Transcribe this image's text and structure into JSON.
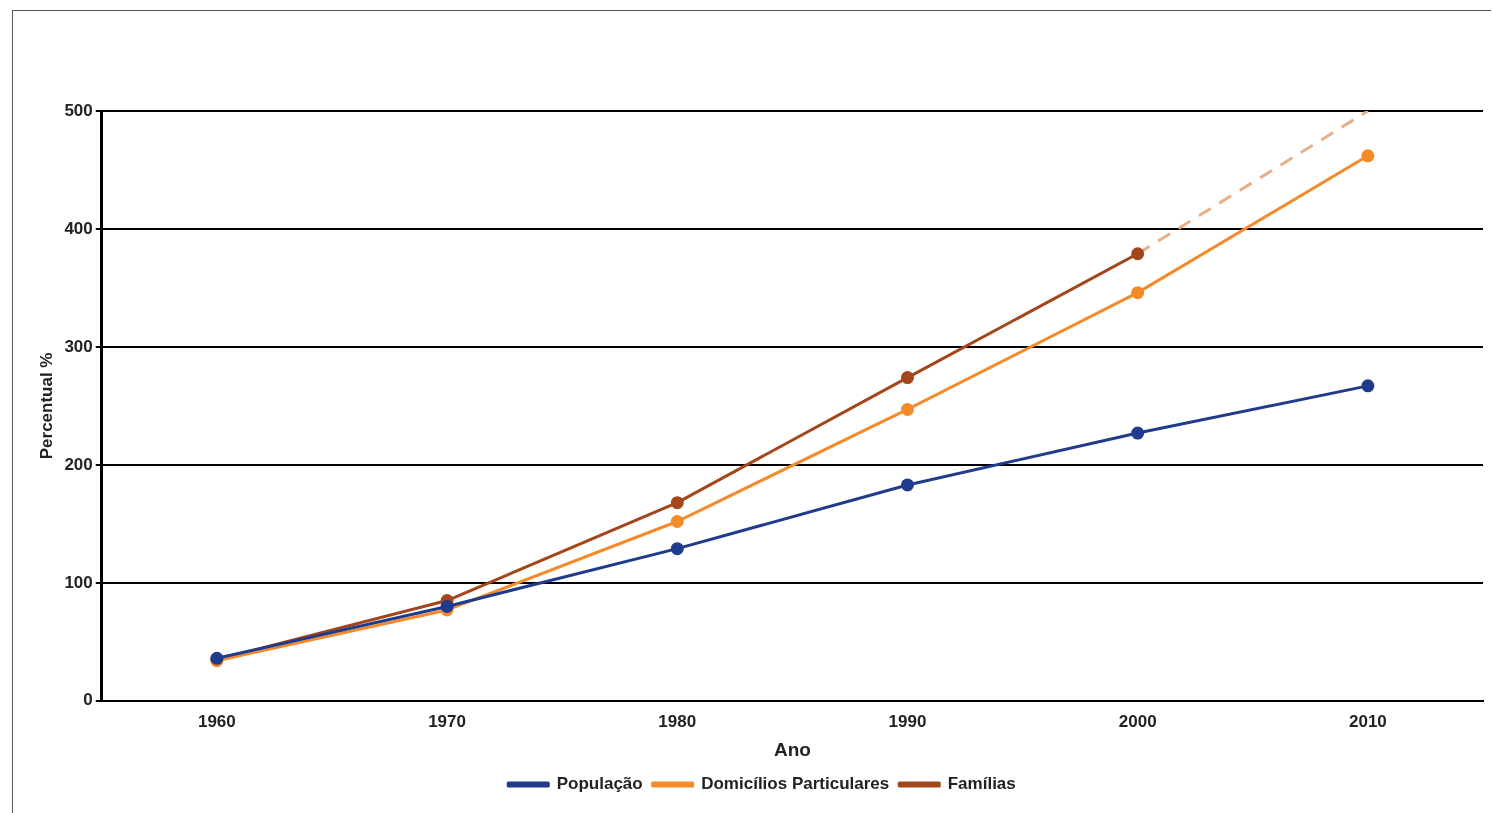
{
  "chart_data": {
    "type": "line",
    "xlabel": "Ano",
    "ylabel": "Percentual %",
    "categories": [
      "1960",
      "1970",
      "1980",
      "1990",
      "2000",
      "2010"
    ],
    "ylim": [
      0,
      500
    ],
    "yticks": [
      0,
      100,
      200,
      300,
      400,
      500
    ],
    "grid": "y",
    "legend": "bottom",
    "marker": "circle",
    "series": [
      {
        "name": "População",
        "color": "#203a8c",
        "values": [
          36,
          80,
          129,
          183,
          227,
          267
        ]
      },
      {
        "name": "Domicílios Particulares",
        "color": "#f58a2a",
        "values": [
          34,
          77,
          152,
          247,
          346,
          462
        ]
      },
      {
        "name": "Famílias",
        "color": "#a4461c",
        "values": [
          35,
          85,
          168,
          274,
          379,
          null
        ]
      },
      {
        "color": "#e8b088",
        "line_style": "dashed",
        "marker": "none",
        "values": [
          null,
          null,
          null,
          null,
          379,
          500
        ]
      }
    ]
  }
}
